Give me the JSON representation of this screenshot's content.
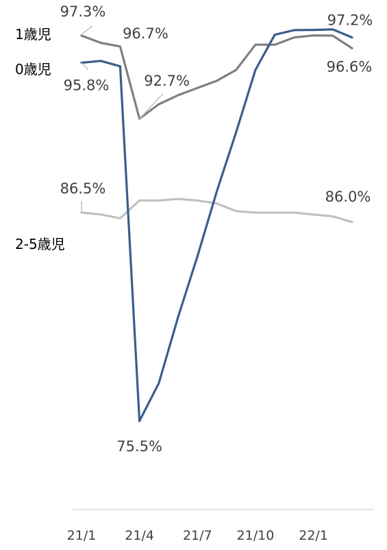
{
  "chart_data": {
    "type": "line",
    "x": [
      "21/1",
      "21/2",
      "21/3",
      "21/4",
      "21/5",
      "21/6",
      "21/7",
      "21/8",
      "21/9",
      "21/10",
      "21/11",
      "21/12",
      "22/1",
      "22/2",
      "22/3"
    ],
    "x_tick_labels": [
      "21/1",
      "21/4",
      "21/7",
      "21/10",
      "22/1"
    ],
    "series": [
      {
        "name": "1歳児",
        "color": "#7f7f7f",
        "values": [
          97.3,
          96.9,
          96.7,
          92.7,
          93.5,
          94.0,
          94.4,
          94.8,
          95.4,
          96.8,
          96.8,
          97.2,
          97.4,
          97.3,
          96.6
        ]
      },
      {
        "name": "0歳児",
        "color": "#3a5e8a",
        "values": [
          95.8,
          95.9,
          95.6,
          75.5,
          77.5,
          81.0,
          84.2,
          87.9,
          91.8,
          95.4,
          97.7,
          99.9,
          100.0,
          100.2,
          97.2
        ]
      },
      {
        "name": "2-5歳児",
        "color": "#c0c0c0",
        "values": [
          86.5,
          86.4,
          86.2,
          87.3,
          87.3,
          87.4,
          87.3,
          87.1,
          86.6,
          86.5,
          86.5,
          86.5,
          86.4,
          86.3,
          86.0
        ]
      }
    ],
    "annotations": [
      {
        "series": 0,
        "point": 0,
        "text": "97.3%"
      },
      {
        "series": 0,
        "point": 2,
        "text": "96.7%"
      },
      {
        "series": 0,
        "point": 3,
        "text": "92.7%"
      },
      {
        "series": 0,
        "point": 14,
        "text": "96.6%"
      },
      {
        "series": 1,
        "point": 0,
        "text": "95.8%"
      },
      {
        "series": 1,
        "point": 3,
        "text": "75.5%"
      },
      {
        "series": 1,
        "point": 14,
        "text": "97.2%"
      },
      {
        "series": 2,
        "point": 0,
        "text": "86.5%"
      },
      {
        "series": 2,
        "point": 14,
        "text": "86.0%"
      }
    ],
    "legend": "series names labelled at left of lines",
    "grid": false
  }
}
